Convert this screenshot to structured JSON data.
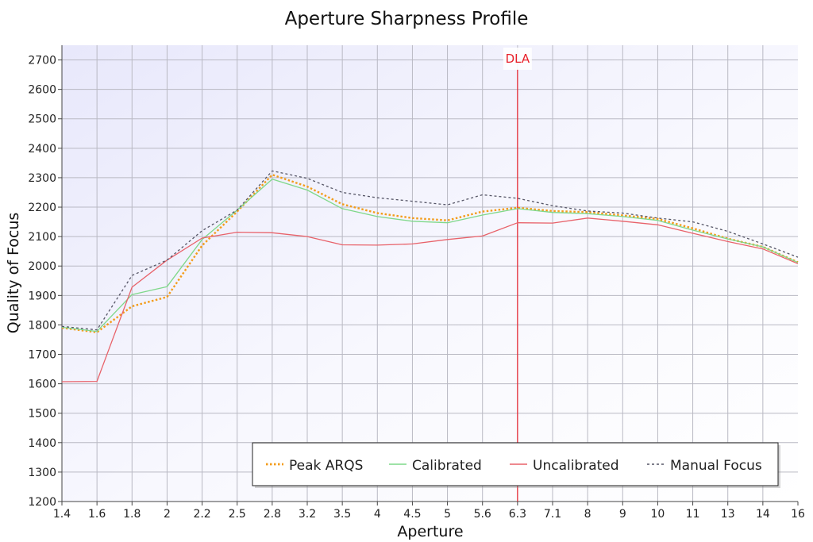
{
  "chart_data": {
    "type": "line",
    "title": "Aperture Sharpness Profile",
    "xlabel": "Aperture",
    "ylabel": "Quality of Focus",
    "categories": [
      "1.4",
      "1.6",
      "1.8",
      "2",
      "2.2",
      "2.5",
      "2.8",
      "3.2",
      "3.5",
      "4",
      "4.5",
      "5",
      "5.6",
      "6.3",
      "7.1",
      "8",
      "9",
      "10",
      "11",
      "13",
      "14",
      "16"
    ],
    "ylim": [
      1200,
      2750
    ],
    "yticks": [
      1200,
      1300,
      1400,
      1500,
      1600,
      1700,
      1800,
      1900,
      2000,
      2100,
      2200,
      2300,
      2400,
      2500,
      2600,
      2700
    ],
    "grid": true,
    "legend_position": "bottom-right",
    "annotation": {
      "label": "DLA",
      "x": "6.3",
      "color": "#e8202a"
    },
    "series": [
      {
        "name": "Peak ARQS",
        "color": "#f39c1b",
        "style": "dotted",
        "values": [
          1790,
          1775,
          1863,
          1895,
          2070,
          2185,
          2310,
          2270,
          2210,
          2180,
          2163,
          2155,
          2185,
          2198,
          2187,
          2183,
          2172,
          2160,
          2128,
          2093,
          2065,
          2013
        ]
      },
      {
        "name": "Calibrated",
        "color": "#7fd88a",
        "style": "solid",
        "values": [
          1792,
          1778,
          1903,
          1930,
          2090,
          2190,
          2295,
          2258,
          2195,
          2168,
          2152,
          2147,
          2173,
          2195,
          2182,
          2178,
          2168,
          2155,
          2122,
          2092,
          2065,
          2012
        ]
      },
      {
        "name": "Uncalibrated",
        "color": "#e8626a",
        "style": "solid",
        "values": [
          1607,
          1608,
          1928,
          2020,
          2095,
          2115,
          2113,
          2100,
          2072,
          2071,
          2075,
          2090,
          2102,
          2147,
          2146,
          2163,
          2152,
          2140,
          2111,
          2083,
          2058,
          2008
        ]
      },
      {
        "name": "Manual Focus",
        "color": "#555566",
        "style": "dashed",
        "values": [
          1795,
          1783,
          1968,
          2020,
          2120,
          2190,
          2323,
          2298,
          2250,
          2232,
          2220,
          2208,
          2242,
          2230,
          2205,
          2187,
          2180,
          2163,
          2150,
          2118,
          2075,
          2030
        ]
      }
    ]
  }
}
